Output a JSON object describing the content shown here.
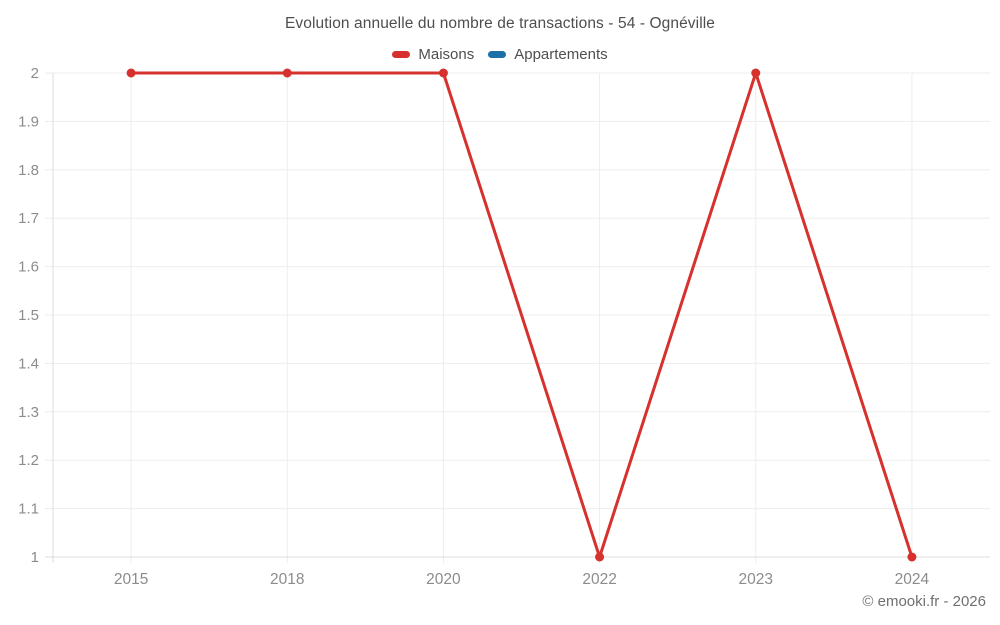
{
  "header": {
    "title": "Evolution annuelle du nombre de transactions - 54 - Ognéville"
  },
  "chart_data": {
    "type": "line",
    "title": "Evolution annuelle du nombre de transactions - 54 - Ognéville",
    "categories": [
      "2015",
      "2018",
      "2020",
      "2022",
      "2023",
      "2024"
    ],
    "series": [
      {
        "name": "Maisons",
        "color": "#d7312e",
        "values": [
          2,
          2,
          2,
          1,
          2,
          1
        ]
      },
      {
        "name": "Appartements",
        "color": "#1c70a8",
        "values": []
      }
    ],
    "xlabel": "",
    "ylabel": "",
    "ylim": [
      1,
      2
    ],
    "ytick_labels": [
      "2",
      "1.9",
      "1.8",
      "1.7",
      "1.6",
      "1.5",
      "1.4",
      "1.3",
      "1.2",
      "1.1",
      "1"
    ],
    "grid": true,
    "legend_position": "top",
    "point_radius": 4.5,
    "line_width": 3
  },
  "footer": {
    "copyright": "© emooki.fr - 2026"
  },
  "colors": {
    "background": "#ffffff",
    "grid": "#ededed",
    "axis_border": "#dcdcdc",
    "tick_label": "#8c8c8c",
    "title_text": "#4e4e4e",
    "legend_text": "#4f4f4f",
    "copyright_text": "#707070"
  }
}
